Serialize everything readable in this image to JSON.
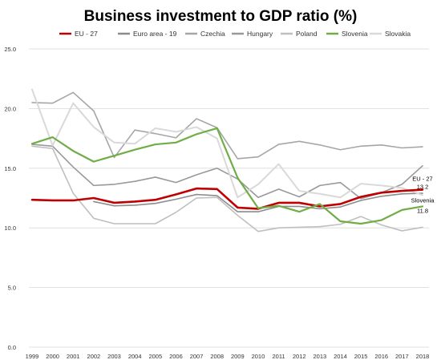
{
  "chart_data": {
    "type": "line",
    "title": "Business investment to GDP ratio (%)",
    "xlabel": "",
    "ylabel": "",
    "x": [
      "1999",
      "2000",
      "2001",
      "2002",
      "2003",
      "2004",
      "2005",
      "2006",
      "2007",
      "2008",
      "2009",
      "2010",
      "2011",
      "2012",
      "2013",
      "2014",
      "2015",
      "2016",
      "2017",
      "2018"
    ],
    "yticks": [
      "0.0",
      "5.0",
      "10.0",
      "15.0",
      "20.0",
      "25.0"
    ],
    "ylim": [
      0,
      25
    ],
    "grid": true,
    "legend_position": "top",
    "series": [
      {
        "name": "EU - 27",
        "color": "#c00000",
        "width": 2.6,
        "values": [
          12.35,
          12.3,
          12.3,
          12.5,
          12.1,
          12.2,
          12.35,
          12.8,
          13.3,
          13.25,
          11.7,
          11.6,
          12.1,
          12.1,
          11.8,
          12.0,
          12.6,
          12.95,
          13.1,
          13.2
        ]
      },
      {
        "name": "Euro area - 19",
        "color": "#8c8c8c",
        "width": 1.6,
        "values": [
          null,
          null,
          null,
          12.2,
          11.85,
          11.9,
          12.05,
          12.4,
          12.8,
          12.7,
          11.35,
          11.35,
          11.8,
          11.8,
          11.6,
          11.75,
          12.3,
          12.65,
          12.85,
          12.9
        ]
      },
      {
        "name": "Czechia",
        "color": "#a6a6a6",
        "width": 1.6,
        "values": [
          20.5,
          20.45,
          21.35,
          19.8,
          15.9,
          18.2,
          17.9,
          17.55,
          19.15,
          18.4,
          15.8,
          15.95,
          17.0,
          17.25,
          16.95,
          16.55,
          16.85,
          16.95,
          16.7,
          16.8
        ]
      },
      {
        "name": "Hungary",
        "color": "#999999",
        "width": 1.6,
        "values": [
          17.0,
          16.85,
          15.1,
          13.55,
          13.65,
          13.9,
          14.25,
          13.8,
          14.45,
          15.0,
          14.1,
          12.55,
          13.25,
          12.6,
          13.55,
          13.8,
          12.45,
          12.95,
          13.65,
          15.2
        ]
      },
      {
        "name": "Poland",
        "color": "#bfbfbf",
        "width": 1.6,
        "values": [
          16.85,
          16.65,
          12.9,
          10.8,
          10.35,
          10.35,
          10.35,
          11.3,
          12.5,
          12.55,
          11.05,
          9.7,
          10.0,
          10.05,
          10.1,
          10.3,
          10.95,
          10.25,
          9.75,
          10.05
        ]
      },
      {
        "name": "Slovenia",
        "color": "#70ad47",
        "width": 2.2,
        "values": [
          17.05,
          17.6,
          16.45,
          15.55,
          16.05,
          16.55,
          17.0,
          17.15,
          17.85,
          18.35,
          14.2,
          11.65,
          11.85,
          11.35,
          12.0,
          10.55,
          10.35,
          10.65,
          11.5,
          11.8
        ]
      },
      {
        "name": "Slovakia",
        "color": "#d9d9d9",
        "width": 2.0,
        "values": [
          21.6,
          16.9,
          20.45,
          18.45,
          17.15,
          17.05,
          18.35,
          18.05,
          18.45,
          17.5,
          12.55,
          13.65,
          15.35,
          13.1,
          12.85,
          12.55,
          13.7,
          13.55,
          13.35,
          12.75
        ]
      }
    ],
    "annotations": [
      {
        "series": "EU - 27",
        "label": "EU - 27",
        "value_label": "13.2"
      },
      {
        "series": "Slovenia",
        "label": "Slovenia",
        "value_label": "11.8"
      }
    ]
  }
}
